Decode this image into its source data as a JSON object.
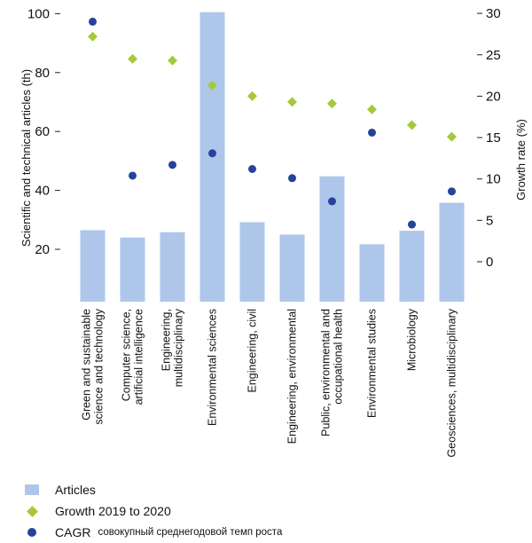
{
  "chart_data": {
    "type": "bar",
    "categories": [
      "Green and sustainable science and technology",
      "Computer science, artificial intelligence",
      "Engineering, multidisciplinary",
      "Environmental sciences",
      "Engineering, civil",
      "Engineering, environmental",
      "Public, environmental and occupational health",
      "Environmental studies",
      "Microbiology",
      "Geosciences, multidisciplinary"
    ],
    "category_lines": [
      [
        "Green and sustainable",
        "science and technology"
      ],
      [
        "Computer science,",
        "artificial intelligence"
      ],
      [
        "Engineering,",
        "multidisciplinary"
      ],
      [
        "Environmental sciences"
      ],
      [
        "Engineering, civil"
      ],
      [
        "Engineering, environmental"
      ],
      [
        "Public, environmental and",
        "occupational health"
      ],
      [
        "Environmental studies"
      ],
      [
        "Microbiology"
      ],
      [
        "Geosciences, multidisciplinary"
      ]
    ],
    "series": [
      {
        "name": "Articles",
        "kind": "bar",
        "axis": "left",
        "color": "#aec6ea",
        "values": [
          26.5,
          24,
          25.8,
          100.5,
          29.2,
          25,
          44.8,
          21.7,
          26.3,
          35.8
        ]
      },
      {
        "name": "Growth 2019 to 2020",
        "kind": "diamond",
        "axis": "right",
        "color": "#a6c83c",
        "values": [
          27.2,
          24.5,
          24.3,
          21.3,
          20,
          19.3,
          19.1,
          18.4,
          16.5,
          15.1
        ]
      },
      {
        "name": "CAGR",
        "kind": "dot",
        "axis": "right",
        "color": "#24449a",
        "values": [
          29,
          10.4,
          11.7,
          13.1,
          11.2,
          10.1,
          7.3,
          15.6,
          4.5,
          8.5
        ]
      }
    ],
    "ylabel": "Scientific and technical articles (th)",
    "y2label": "Growth rate (%)",
    "yticks": [
      "20",
      "40",
      "60",
      "80",
      "100"
    ],
    "y2ticks": [
      "0",
      "5",
      "10",
      "15",
      "20",
      "25",
      "30"
    ],
    "ylim": [
      20,
      100
    ],
    "y2lim": [
      0,
      30
    ],
    "legend_position": "bottom-left",
    "grid": false
  },
  "legend": {
    "articles": "Articles",
    "growth": "Growth 2019 to 2020",
    "cagr": "CAGR",
    "cagr_note": "совокупный среднегодовой темп роста"
  }
}
